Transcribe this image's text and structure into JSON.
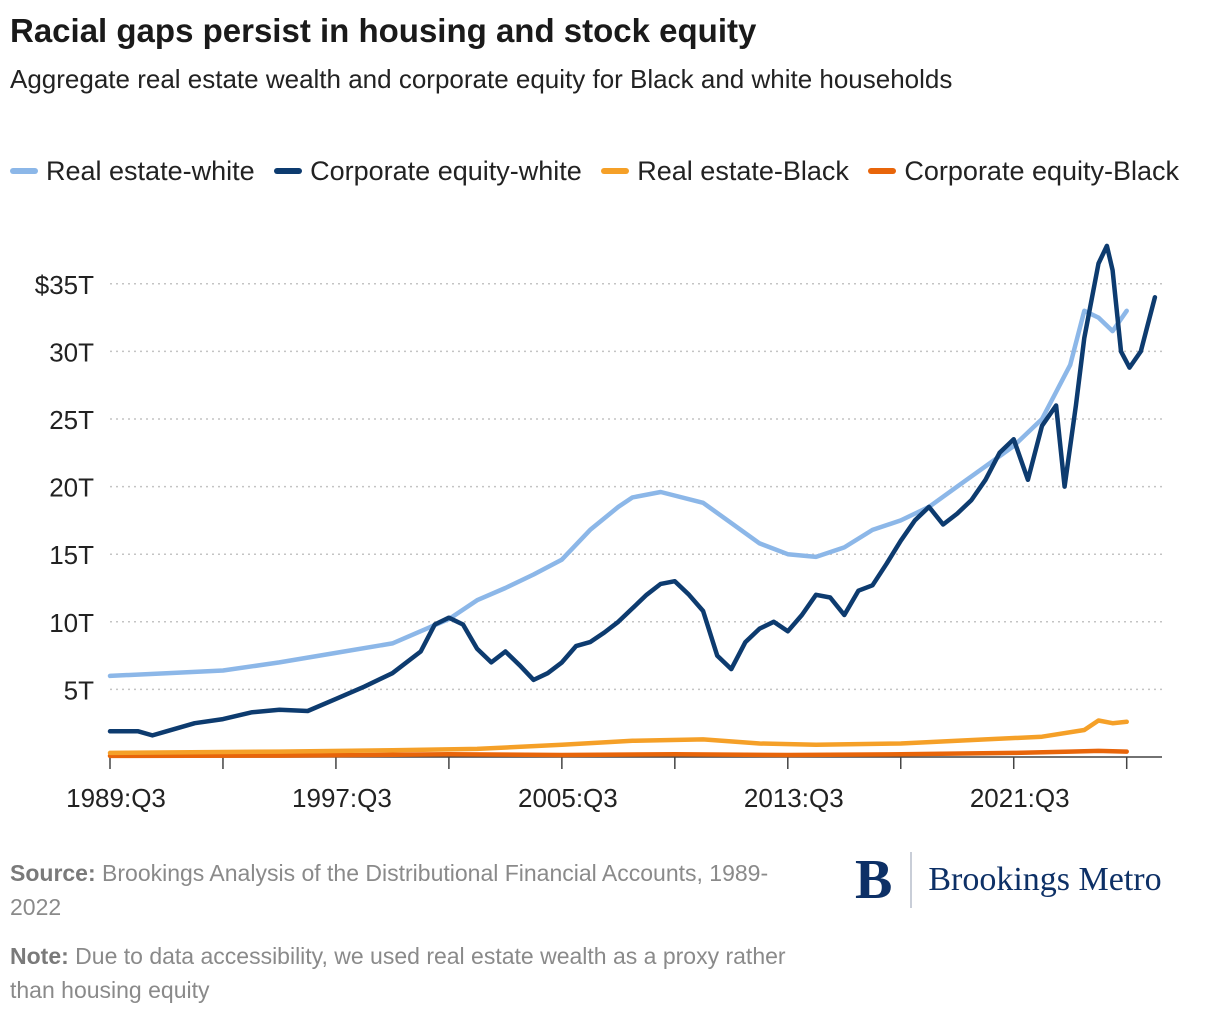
{
  "header": {
    "title": "Racial gaps persist in housing and stock equity",
    "subtitle": "Aggregate real estate wealth and corporate equity for Black and white households"
  },
  "legend": [
    {
      "label": "Real estate-white",
      "color": "#8cb7e8"
    },
    {
      "label": "Corporate equity-white",
      "color": "#0d3b6f"
    },
    {
      "label": "Real estate-Black",
      "color": "#f5a028"
    },
    {
      "label": "Corporate equity-Black",
      "color": "#e8650a"
    }
  ],
  "footer": {
    "source_label": "Source:",
    "source_text": "Brookings Analysis of the Distributional Financial Accounts, 1989-2022",
    "note_label": "Note:",
    "note_text": "Due to data accessibility, we used real estate wealth as a proxy rather than housing equity"
  },
  "logo": {
    "mark": "B",
    "text": "Brookings Metro"
  },
  "chart_data": {
    "type": "line",
    "title": "Racial gaps persist in housing and stock equity",
    "subtitle": "Aggregate real estate wealth and corporate equity for Black and white households",
    "x_unit": "quarter",
    "x_start": "1989:Q3",
    "x_tick_labels": [
      "1989:Q3",
      "1997:Q3",
      "2005:Q3",
      "2013:Q3",
      "2021:Q3"
    ],
    "y_tick_labels": [
      "5T",
      "10T",
      "15T",
      "20T",
      "25T",
      "30T",
      "$35T"
    ],
    "y_ticks": [
      5,
      10,
      15,
      20,
      25,
      30,
      35
    ],
    "ylim": [
      0,
      37.5
    ],
    "grid": true,
    "legend_position": "top",
    "series": [
      {
        "name": "Real estate-white",
        "color": "#8cb7e8",
        "points": [
          [
            1989.5,
            6.0
          ],
          [
            1991.5,
            6.2
          ],
          [
            1993.5,
            6.4
          ],
          [
            1995.5,
            7.0
          ],
          [
            1997.5,
            7.7
          ],
          [
            1999.5,
            8.4
          ],
          [
            2001.5,
            10.2
          ],
          [
            2002.5,
            11.6
          ],
          [
            2003.5,
            12.5
          ],
          [
            2004.5,
            13.5
          ],
          [
            2005.5,
            14.6
          ],
          [
            2006.5,
            16.8
          ],
          [
            2007.5,
            18.5
          ],
          [
            2008.0,
            19.2
          ],
          [
            2009.0,
            19.6
          ],
          [
            2010.5,
            18.8
          ],
          [
            2011.5,
            17.3
          ],
          [
            2012.5,
            15.8
          ],
          [
            2013.5,
            15.0
          ],
          [
            2014.5,
            14.8
          ],
          [
            2015.5,
            15.5
          ],
          [
            2016.5,
            16.8
          ],
          [
            2017.5,
            17.5
          ],
          [
            2018.5,
            18.5
          ],
          [
            2019.5,
            20.0
          ],
          [
            2020.5,
            21.5
          ],
          [
            2021.5,
            23.0
          ],
          [
            2022.5,
            25.0
          ],
          [
            2023.0,
            27.0
          ],
          [
            2023.5,
            29.0
          ],
          [
            2024.0,
            33.0
          ],
          [
            2024.5,
            32.5
          ],
          [
            2025.0,
            31.5
          ],
          [
            2025.5,
            33.0
          ]
        ]
      },
      {
        "name": "Corporate equity-white",
        "color": "#0d3b6f",
        "points": [
          [
            1989.5,
            1.9
          ],
          [
            1990.5,
            1.9
          ],
          [
            1991.0,
            1.6
          ],
          [
            1991.5,
            1.9
          ],
          [
            1992.5,
            2.5
          ],
          [
            1993.5,
            2.8
          ],
          [
            1994.5,
            3.3
          ],
          [
            1995.5,
            3.5
          ],
          [
            1996.5,
            3.4
          ],
          [
            1997.5,
            4.3
          ],
          [
            1998.5,
            5.2
          ],
          [
            1999.5,
            6.2
          ],
          [
            2000.5,
            7.8
          ],
          [
            2001.0,
            9.8
          ],
          [
            2001.5,
            10.3
          ],
          [
            2002.0,
            9.8
          ],
          [
            2002.5,
            8.0
          ],
          [
            2003.0,
            7.0
          ],
          [
            2003.5,
            7.8
          ],
          [
            2004.0,
            6.8
          ],
          [
            2004.5,
            5.7
          ],
          [
            2005.0,
            6.2
          ],
          [
            2005.5,
            7.0
          ],
          [
            2006.0,
            8.2
          ],
          [
            2006.5,
            8.5
          ],
          [
            2007.0,
            9.2
          ],
          [
            2007.5,
            10.0
          ],
          [
            2008.0,
            11.0
          ],
          [
            2008.5,
            12.0
          ],
          [
            2009.0,
            12.8
          ],
          [
            2009.5,
            13.0
          ],
          [
            2010.0,
            12.0
          ],
          [
            2010.5,
            10.8
          ],
          [
            2011.0,
            7.5
          ],
          [
            2011.5,
            6.5
          ],
          [
            2012.0,
            8.5
          ],
          [
            2012.5,
            9.5
          ],
          [
            2013.0,
            10.0
          ],
          [
            2013.5,
            9.3
          ],
          [
            2014.0,
            10.5
          ],
          [
            2014.5,
            12.0
          ],
          [
            2015.0,
            11.8
          ],
          [
            2015.5,
            10.5
          ],
          [
            2016.0,
            12.3
          ],
          [
            2016.5,
            12.7
          ],
          [
            2017.0,
            14.3
          ],
          [
            2017.5,
            16.0
          ],
          [
            2018.0,
            17.5
          ],
          [
            2018.5,
            18.5
          ],
          [
            2019.0,
            17.2
          ],
          [
            2019.5,
            18.0
          ],
          [
            2020.0,
            19.0
          ],
          [
            2020.5,
            20.5
          ],
          [
            2021.0,
            22.5
          ],
          [
            2021.5,
            23.5
          ],
          [
            2022.0,
            20.5
          ],
          [
            2022.5,
            24.5
          ],
          [
            2023.0,
            26.0
          ],
          [
            2023.3,
            20.0
          ],
          [
            2023.7,
            26.0
          ],
          [
            2024.0,
            31.0
          ],
          [
            2024.5,
            36.5
          ],
          [
            2024.8,
            37.8
          ],
          [
            2025.0,
            36.0
          ],
          [
            2025.3,
            30.0
          ],
          [
            2025.6,
            28.8
          ],
          [
            2026.0,
            30.0
          ],
          [
            2026.5,
            34.0
          ]
        ]
      },
      {
        "name": "Real estate-Black",
        "color": "#f5a028",
        "points": [
          [
            1989.5,
            0.3
          ],
          [
            1995.5,
            0.4
          ],
          [
            1999.5,
            0.5
          ],
          [
            2002.5,
            0.6
          ],
          [
            2005.5,
            0.9
          ],
          [
            2008.0,
            1.2
          ],
          [
            2010.5,
            1.3
          ],
          [
            2012.5,
            1.0
          ],
          [
            2014.5,
            0.9
          ],
          [
            2017.5,
            1.0
          ],
          [
            2020.5,
            1.3
          ],
          [
            2022.5,
            1.5
          ],
          [
            2024.0,
            2.0
          ],
          [
            2024.5,
            2.7
          ],
          [
            2025.0,
            2.5
          ],
          [
            2025.5,
            2.6
          ]
        ]
      },
      {
        "name": "Corporate equity-Black",
        "color": "#e8650a",
        "points": [
          [
            1989.5,
            0.08
          ],
          [
            1995.5,
            0.1
          ],
          [
            2001.5,
            0.2
          ],
          [
            2005.5,
            0.15
          ],
          [
            2009.5,
            0.2
          ],
          [
            2013.5,
            0.15
          ],
          [
            2017.5,
            0.2
          ],
          [
            2021.5,
            0.3
          ],
          [
            2023.5,
            0.4
          ],
          [
            2024.5,
            0.45
          ],
          [
            2025.5,
            0.4
          ]
        ]
      }
    ]
  }
}
